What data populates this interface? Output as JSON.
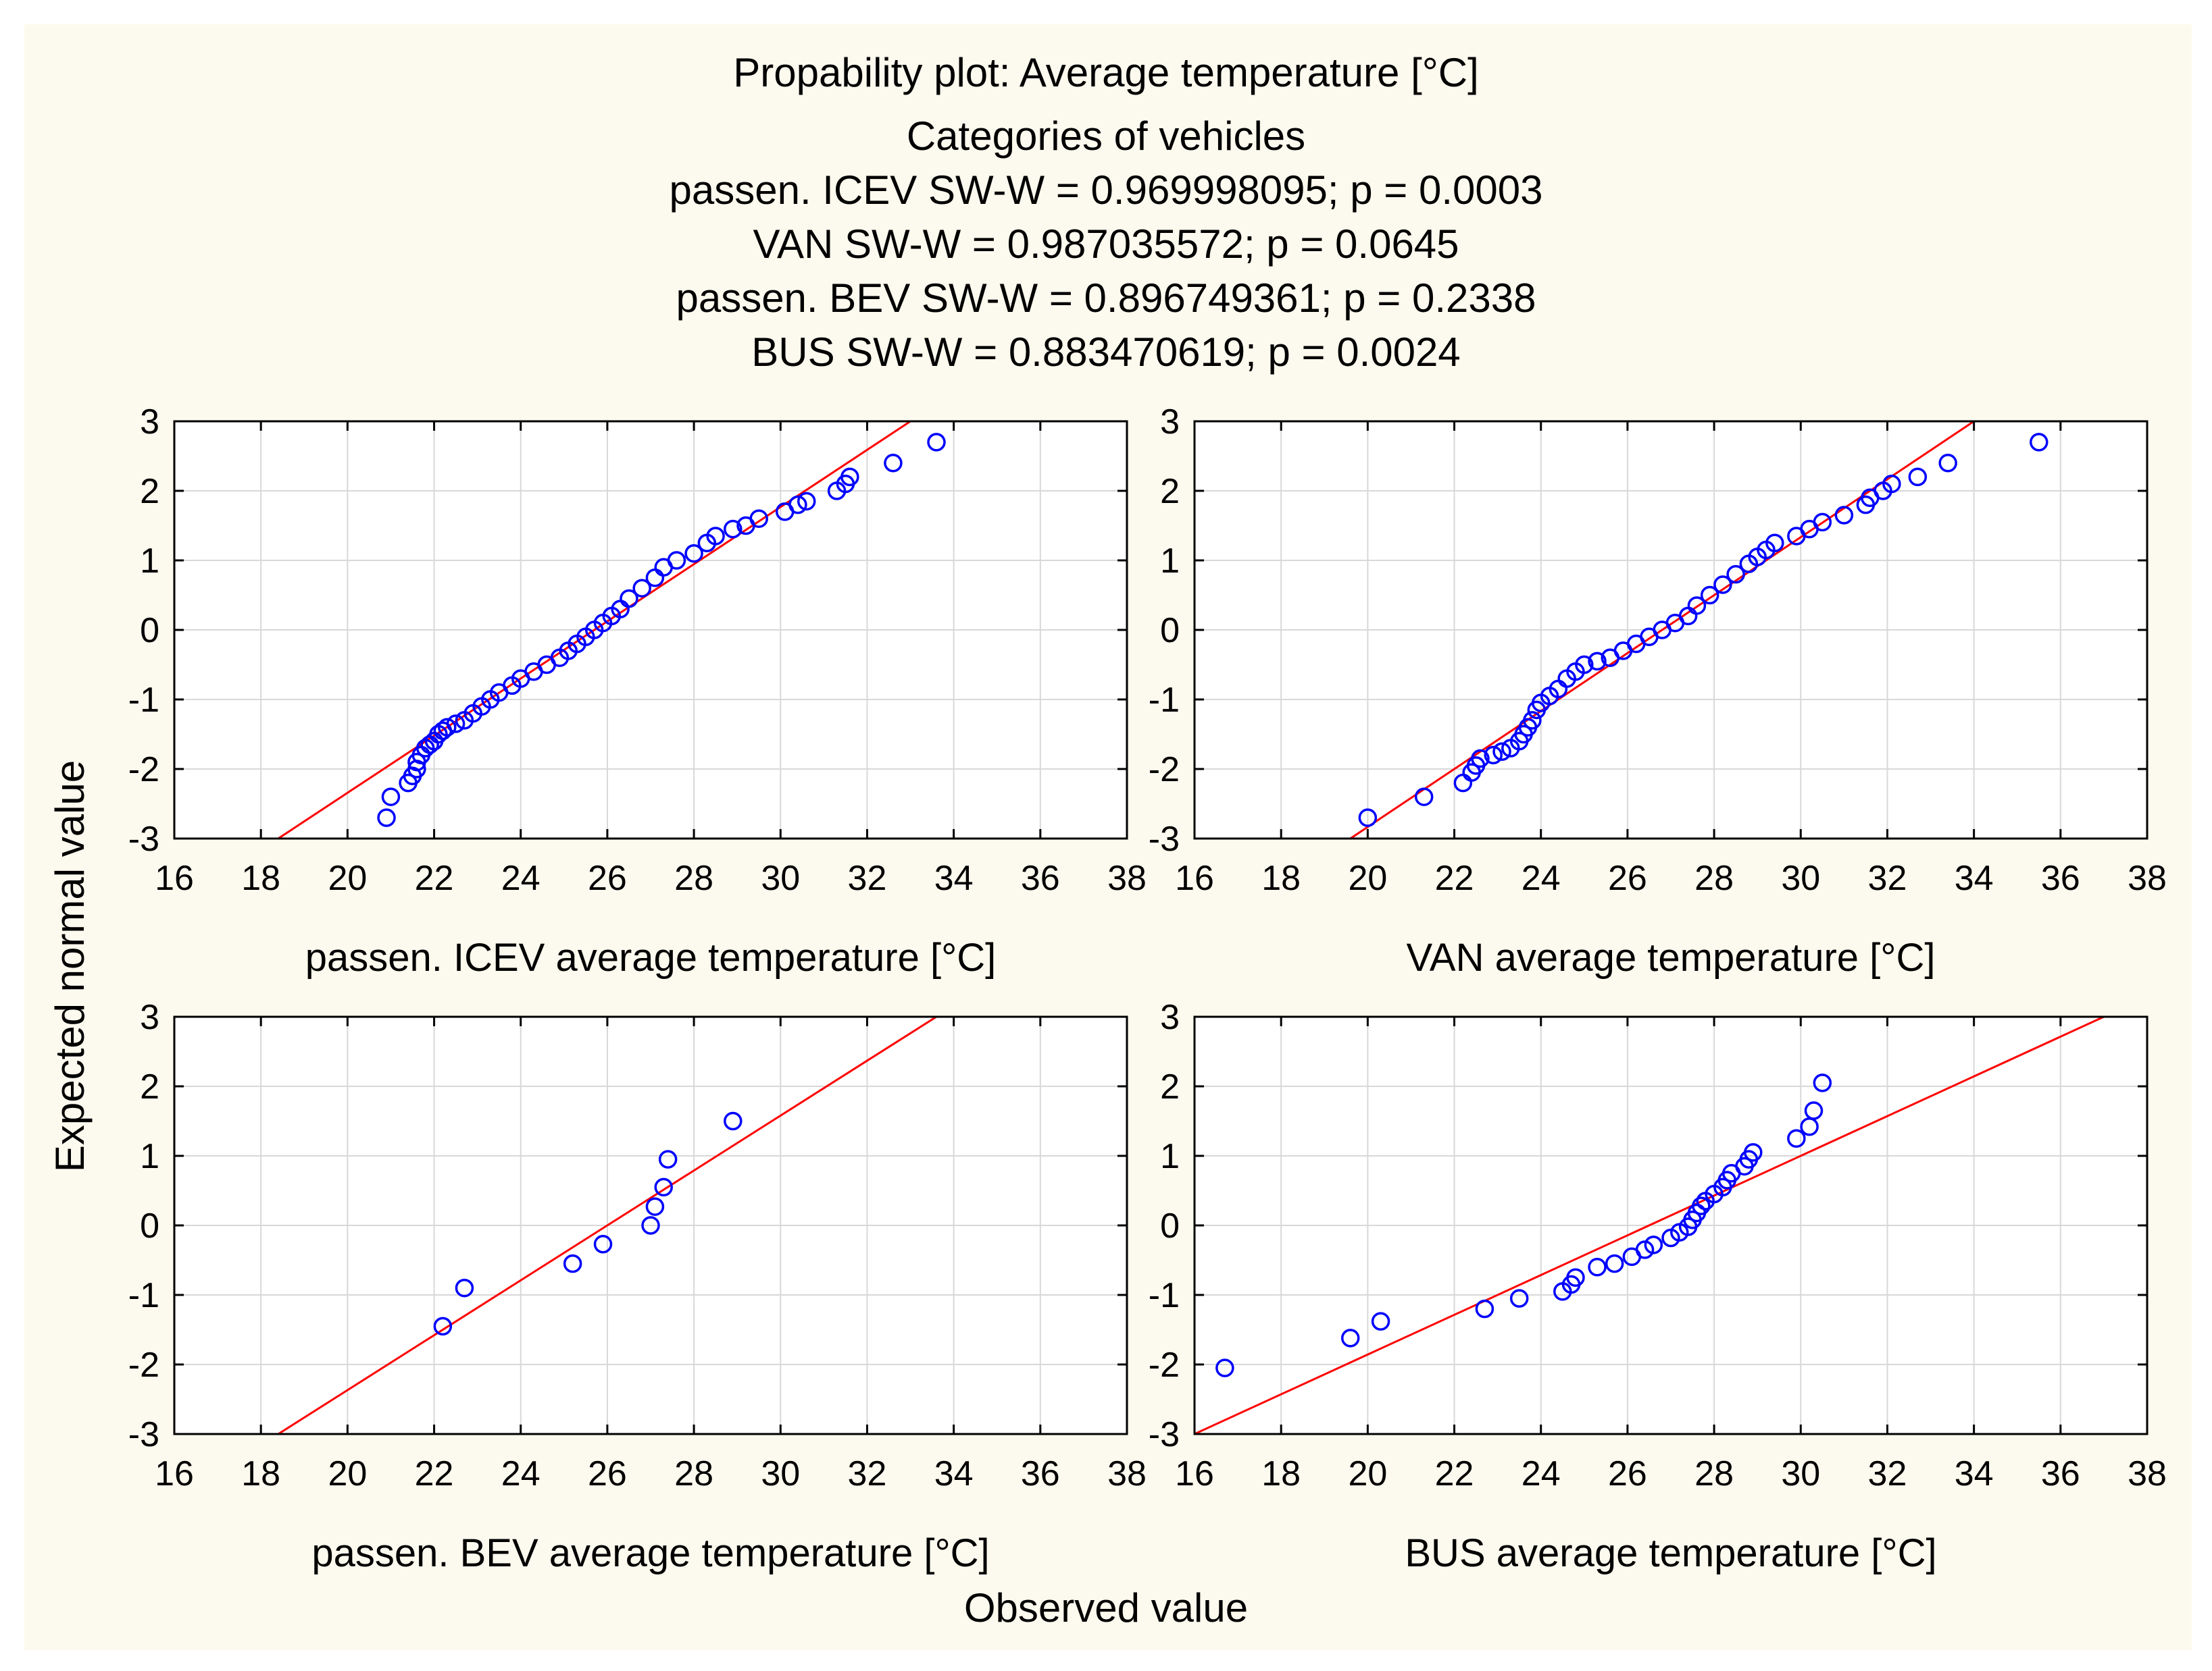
{
  "title_lines": [
    "Propability plot: Average temperature [°C]",
    "Categories of vehicles",
    "passen. ICEV SW-W = 0.969998095; p = 0.0003",
    "VAN SW-W = 0.987035572; p = 0.0645",
    "passen. BEV SW-W = 0.896749361; p = 0.2338",
    "BUS SW-W = 0.883470619; p = 0.0024"
  ],
  "axes": {
    "ylabel": "Expected normal value",
    "xlabel": "Observed value"
  },
  "colors": {
    "points": "#0000ff",
    "fit_line": "#ff0000",
    "background": "#fcf9ee",
    "grid": "#d8d8d8"
  },
  "chart_data": [
    {
      "type": "scatter",
      "name": "passen. ICEV",
      "xlabel": "passen. ICEV average temperature [°C]",
      "xlim": [
        16,
        38
      ],
      "ylim": [
        -3,
        3
      ],
      "xticks": [
        16,
        18,
        20,
        22,
        24,
        26,
        28,
        30,
        32,
        34,
        36,
        38
      ],
      "yticks": [
        -3,
        -2,
        -1,
        0,
        1,
        2,
        3
      ],
      "fit_line": [
        [
          18.4,
          -3
        ],
        [
          33.0,
          3
        ]
      ],
      "points": [
        [
          20.9,
          -2.7
        ],
        [
          21.0,
          -2.4
        ],
        [
          21.4,
          -2.2
        ],
        [
          21.5,
          -2.1
        ],
        [
          21.6,
          -2.0
        ],
        [
          21.6,
          -1.9
        ],
        [
          21.7,
          -1.8
        ],
        [
          21.8,
          -1.7
        ],
        [
          21.9,
          -1.65
        ],
        [
          22.0,
          -1.6
        ],
        [
          22.1,
          -1.5
        ],
        [
          22.2,
          -1.45
        ],
        [
          22.3,
          -1.4
        ],
        [
          22.5,
          -1.35
        ],
        [
          22.7,
          -1.3
        ],
        [
          22.9,
          -1.2
        ],
        [
          23.1,
          -1.1
        ],
        [
          23.3,
          -1.0
        ],
        [
          23.5,
          -0.9
        ],
        [
          23.8,
          -0.8
        ],
        [
          24.0,
          -0.7
        ],
        [
          24.3,
          -0.6
        ],
        [
          24.6,
          -0.5
        ],
        [
          24.9,
          -0.4
        ],
        [
          25.1,
          -0.3
        ],
        [
          25.3,
          -0.2
        ],
        [
          25.5,
          -0.1
        ],
        [
          25.7,
          0.0
        ],
        [
          25.9,
          0.1
        ],
        [
          26.1,
          0.2
        ],
        [
          26.3,
          0.3
        ],
        [
          26.5,
          0.45
        ],
        [
          26.8,
          0.6
        ],
        [
          27.1,
          0.75
        ],
        [
          27.3,
          0.9
        ],
        [
          27.6,
          1.0
        ],
        [
          28.0,
          1.1
        ],
        [
          28.3,
          1.25
        ],
        [
          28.5,
          1.35
        ],
        [
          28.9,
          1.45
        ],
        [
          29.2,
          1.5
        ],
        [
          29.5,
          1.6
        ],
        [
          30.1,
          1.7
        ],
        [
          30.4,
          1.8
        ],
        [
          30.6,
          1.85
        ],
        [
          31.3,
          2.0
        ],
        [
          31.5,
          2.1
        ],
        [
          31.6,
          2.2
        ],
        [
          32.6,
          2.4
        ],
        [
          33.6,
          2.7
        ]
      ]
    },
    {
      "type": "scatter",
      "name": "VAN",
      "xlabel": "VAN average temperature [°C]",
      "xlim": [
        16,
        38
      ],
      "ylim": [
        -3,
        3
      ],
      "xticks": [
        16,
        18,
        20,
        22,
        24,
        26,
        28,
        30,
        32,
        34,
        36,
        38
      ],
      "yticks": [
        -3,
        -2,
        -1,
        0,
        1,
        2,
        3
      ],
      "fit_line": [
        [
          19.6,
          -3
        ],
        [
          34.0,
          3
        ]
      ],
      "points": [
        [
          20.0,
          -2.7
        ],
        [
          21.3,
          -2.4
        ],
        [
          22.2,
          -2.2
        ],
        [
          22.4,
          -2.05
        ],
        [
          22.5,
          -1.95
        ],
        [
          22.6,
          -1.85
        ],
        [
          22.9,
          -1.8
        ],
        [
          23.1,
          -1.75
        ],
        [
          23.3,
          -1.7
        ],
        [
          23.5,
          -1.6
        ],
        [
          23.6,
          -1.5
        ],
        [
          23.7,
          -1.4
        ],
        [
          23.8,
          -1.3
        ],
        [
          23.9,
          -1.15
        ],
        [
          24.0,
          -1.05
        ],
        [
          24.2,
          -0.95
        ],
        [
          24.4,
          -0.85
        ],
        [
          24.6,
          -0.7
        ],
        [
          24.8,
          -0.6
        ],
        [
          25.0,
          -0.5
        ],
        [
          25.3,
          -0.45
        ],
        [
          25.6,
          -0.4
        ],
        [
          25.9,
          -0.3
        ],
        [
          26.2,
          -0.2
        ],
        [
          26.5,
          -0.1
        ],
        [
          26.8,
          0.0
        ],
        [
          27.1,
          0.1
        ],
        [
          27.4,
          0.2
        ],
        [
          27.6,
          0.35
        ],
        [
          27.9,
          0.5
        ],
        [
          28.2,
          0.65
        ],
        [
          28.5,
          0.8
        ],
        [
          28.8,
          0.95
        ],
        [
          29.0,
          1.05
        ],
        [
          29.2,
          1.15
        ],
        [
          29.4,
          1.25
        ],
        [
          29.9,
          1.35
        ],
        [
          30.2,
          1.45
        ],
        [
          30.5,
          1.55
        ],
        [
          31.0,
          1.65
        ],
        [
          31.5,
          1.8
        ],
        [
          31.6,
          1.9
        ],
        [
          31.9,
          2.0
        ],
        [
          32.1,
          2.1
        ],
        [
          32.7,
          2.2
        ],
        [
          33.4,
          2.4
        ],
        [
          35.5,
          2.7
        ]
      ]
    },
    {
      "type": "scatter",
      "name": "passen. BEV",
      "xlabel": "passen. BEV average temperature [°C]",
      "xlim": [
        16,
        38
      ],
      "ylim": [
        -3,
        3
      ],
      "xticks": [
        16,
        18,
        20,
        22,
        24,
        26,
        28,
        30,
        32,
        34,
        36,
        38
      ],
      "yticks": [
        -3,
        -2,
        -1,
        0,
        1,
        2,
        3
      ],
      "fit_line": [
        [
          18.4,
          -3
        ],
        [
          33.6,
          3
        ]
      ],
      "points": [
        [
          22.2,
          -1.45
        ],
        [
          22.7,
          -0.9
        ],
        [
          25.2,
          -0.55
        ],
        [
          25.9,
          -0.27
        ],
        [
          27.0,
          0.0
        ],
        [
          27.1,
          0.27
        ],
        [
          27.3,
          0.55
        ],
        [
          27.4,
          0.95
        ],
        [
          28.9,
          1.5
        ]
      ]
    },
    {
      "type": "scatter",
      "name": "BUS",
      "xlabel": "BUS average temperature [°C]",
      "xlim": [
        16,
        38
      ],
      "ylim": [
        -3,
        3
      ],
      "xticks": [
        16,
        18,
        20,
        22,
        24,
        26,
        28,
        30,
        32,
        34,
        36,
        38
      ],
      "yticks": [
        -3,
        -2,
        -1,
        0,
        1,
        2,
        3
      ],
      "fit_line": [
        [
          16.0,
          -3
        ],
        [
          37.0,
          3
        ]
      ],
      "points": [
        [
          16.7,
          -2.05
        ],
        [
          19.6,
          -1.62
        ],
        [
          20.3,
          -1.38
        ],
        [
          22.7,
          -1.2
        ],
        [
          23.5,
          -1.05
        ],
        [
          24.5,
          -0.95
        ],
        [
          24.7,
          -0.85
        ],
        [
          24.8,
          -0.75
        ],
        [
          25.3,
          -0.6
        ],
        [
          25.7,
          -0.55
        ],
        [
          26.1,
          -0.45
        ],
        [
          26.4,
          -0.35
        ],
        [
          26.6,
          -0.28
        ],
        [
          27.0,
          -0.18
        ],
        [
          27.2,
          -0.1
        ],
        [
          27.4,
          -0.02
        ],
        [
          27.5,
          0.08
        ],
        [
          27.6,
          0.18
        ],
        [
          27.7,
          0.28
        ],
        [
          27.8,
          0.35
        ],
        [
          28.0,
          0.45
        ],
        [
          28.2,
          0.55
        ],
        [
          28.3,
          0.65
        ],
        [
          28.4,
          0.75
        ],
        [
          28.7,
          0.85
        ],
        [
          28.8,
          0.95
        ],
        [
          28.9,
          1.05
        ],
        [
          29.9,
          1.25
        ],
        [
          30.2,
          1.42
        ],
        [
          30.3,
          1.65
        ],
        [
          30.5,
          2.05
        ]
      ]
    }
  ]
}
